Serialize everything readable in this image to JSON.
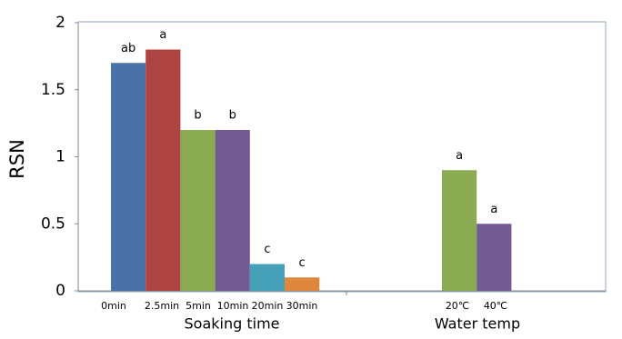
{
  "chart_data": {
    "type": "bar",
    "y_label": "RSN",
    "ylim": [
      0,
      2
    ],
    "yticks": [
      0,
      0.5,
      1,
      1.5,
      2
    ],
    "groups": [
      {
        "label": "Soaking time",
        "categories": [
          "0min",
          "2.5min",
          "5min",
          "10min",
          "20min",
          "30min"
        ],
        "values": [
          1.7,
          1.8,
          1.2,
          1.2,
          0.2,
          0.1
        ],
        "colors": [
          "#4a72a8",
          "#ae4441",
          "#8bab52",
          "#735a92",
          "#45a0b8",
          "#df873c"
        ],
        "letters": [
          "ab",
          "a",
          "b",
          "b",
          "c",
          "c"
        ]
      },
      {
        "label": "Water temp",
        "categories": [
          "20℃",
          "40℃"
        ],
        "values": [
          0.9,
          0.5
        ],
        "colors": [
          "#8bab52",
          "#735a92"
        ],
        "letters": [
          "a",
          "a"
        ]
      }
    ]
  }
}
